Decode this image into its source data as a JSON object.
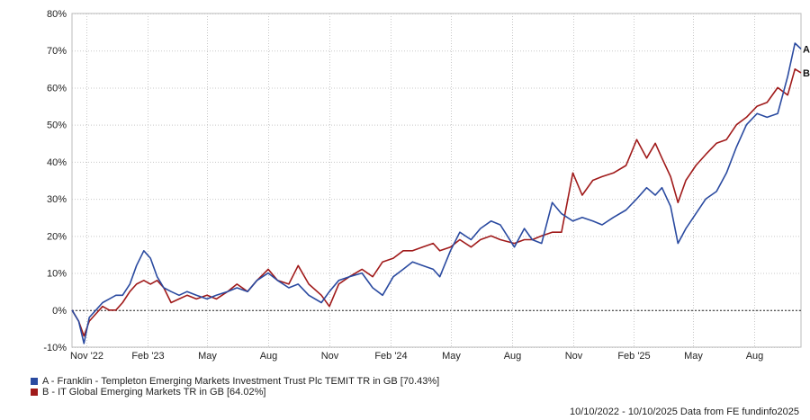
{
  "chart_data": {
    "type": "line",
    "title": "",
    "xlabel": "",
    "ylabel": "",
    "ylim": [
      -10,
      80
    ],
    "y_ticks": [
      "80%",
      "70%",
      "60%",
      "50%",
      "40%",
      "30%",
      "20%",
      "10%",
      "0%",
      "-10%"
    ],
    "y_tick_values": [
      80,
      70,
      60,
      50,
      40,
      30,
      20,
      10,
      0,
      -10
    ],
    "x_range": [
      "2022-10-10",
      "2025-10-10"
    ],
    "x_ticks": [
      {
        "label": "Nov '22",
        "date": "2022-11-01"
      },
      {
        "label": "Feb '23",
        "date": "2023-02-01"
      },
      {
        "label": "May",
        "date": "2023-05-01"
      },
      {
        "label": "Aug",
        "date": "2023-08-01"
      },
      {
        "label": "Nov",
        "date": "2023-11-01"
      },
      {
        "label": "Feb '24",
        "date": "2024-02-01"
      },
      {
        "label": "May",
        "date": "2024-05-01"
      },
      {
        "label": "Aug",
        "date": "2024-08-01"
      },
      {
        "label": "Nov",
        "date": "2024-11-01"
      },
      {
        "label": "Feb '25",
        "date": "2025-02-01"
      },
      {
        "label": "May",
        "date": "2025-05-01"
      },
      {
        "label": "Aug",
        "date": "2025-08-01"
      }
    ],
    "grid": true,
    "zero_line": true,
    "series": [
      {
        "name": "A - Franklin - Templeton Emerging Markets Investment Trust Plc TEMIT TR in GB [70.43%]",
        "end_label": "A",
        "color": "#2a4aa0",
        "points": [
          [
            "2022-10-10",
            0
          ],
          [
            "2022-10-20",
            -3
          ],
          [
            "2022-10-28",
            -9
          ],
          [
            "2022-11-05",
            -2
          ],
          [
            "2022-11-15",
            0
          ],
          [
            "2022-11-25",
            2
          ],
          [
            "2022-12-05",
            3
          ],
          [
            "2022-12-15",
            4
          ],
          [
            "2022-12-25",
            4
          ],
          [
            "2023-01-05",
            7
          ],
          [
            "2023-01-15",
            12
          ],
          [
            "2023-01-26",
            16
          ],
          [
            "2023-02-05",
            14
          ],
          [
            "2023-02-15",
            9
          ],
          [
            "2023-02-25",
            6
          ],
          [
            "2023-03-08",
            5
          ],
          [
            "2023-03-20",
            4
          ],
          [
            "2023-04-01",
            5
          ],
          [
            "2023-04-15",
            4
          ],
          [
            "2023-05-01",
            3
          ],
          [
            "2023-05-15",
            4
          ],
          [
            "2023-06-01",
            5
          ],
          [
            "2023-06-15",
            6
          ],
          [
            "2023-07-01",
            5
          ],
          [
            "2023-07-15",
            8
          ],
          [
            "2023-08-01",
            10
          ],
          [
            "2023-08-15",
            8
          ],
          [
            "2023-09-01",
            6
          ],
          [
            "2023-09-15",
            7
          ],
          [
            "2023-10-01",
            4
          ],
          [
            "2023-10-20",
            2
          ],
          [
            "2023-11-01",
            5
          ],
          [
            "2023-11-15",
            8
          ],
          [
            "2023-12-01",
            9
          ],
          [
            "2023-12-20",
            10
          ],
          [
            "2024-01-05",
            6
          ],
          [
            "2024-01-20",
            4
          ],
          [
            "2024-02-05",
            9
          ],
          [
            "2024-02-20",
            11
          ],
          [
            "2024-03-05",
            13
          ],
          [
            "2024-03-20",
            12
          ],
          [
            "2024-04-05",
            11
          ],
          [
            "2024-04-15",
            9
          ],
          [
            "2024-05-01",
            16
          ],
          [
            "2024-05-15",
            21
          ],
          [
            "2024-06-01",
            19
          ],
          [
            "2024-06-15",
            22
          ],
          [
            "2024-07-01",
            24
          ],
          [
            "2024-07-15",
            23
          ],
          [
            "2024-08-05",
            17
          ],
          [
            "2024-08-20",
            22
          ],
          [
            "2024-09-01",
            19
          ],
          [
            "2024-09-15",
            18
          ],
          [
            "2024-10-01",
            29
          ],
          [
            "2024-10-15",
            26
          ],
          [
            "2024-11-01",
            24
          ],
          [
            "2024-11-15",
            25
          ],
          [
            "2024-12-01",
            24
          ],
          [
            "2024-12-15",
            23
          ],
          [
            "2025-01-01",
            25
          ],
          [
            "2025-01-20",
            27
          ],
          [
            "2025-02-05",
            30
          ],
          [
            "2025-02-20",
            33
          ],
          [
            "2025-03-05",
            31
          ],
          [
            "2025-03-15",
            33
          ],
          [
            "2025-03-28",
            28
          ],
          [
            "2025-04-08",
            18
          ],
          [
            "2025-04-20",
            22
          ],
          [
            "2025-05-05",
            26
          ],
          [
            "2025-05-20",
            30
          ],
          [
            "2025-06-05",
            32
          ],
          [
            "2025-06-20",
            37
          ],
          [
            "2025-07-05",
            44
          ],
          [
            "2025-07-20",
            50
          ],
          [
            "2025-08-05",
            53
          ],
          [
            "2025-08-20",
            52
          ],
          [
            "2025-09-05",
            53
          ],
          [
            "2025-09-20",
            63
          ],
          [
            "2025-10-01",
            72
          ],
          [
            "2025-10-10",
            70.43
          ]
        ]
      },
      {
        "name": "B - IT Global Emerging Markets TR in GB [64.02%]",
        "end_label": "B",
        "color": "#a01a1a",
        "points": [
          [
            "2022-10-10",
            0
          ],
          [
            "2022-10-20",
            -3
          ],
          [
            "2022-10-28",
            -7
          ],
          [
            "2022-11-05",
            -3
          ],
          [
            "2022-11-15",
            -1
          ],
          [
            "2022-11-25",
            1
          ],
          [
            "2022-12-05",
            0
          ],
          [
            "2022-12-15",
            0
          ],
          [
            "2022-12-25",
            2
          ],
          [
            "2023-01-05",
            5
          ],
          [
            "2023-01-15",
            7
          ],
          [
            "2023-01-26",
            8
          ],
          [
            "2023-02-05",
            7
          ],
          [
            "2023-02-15",
            8
          ],
          [
            "2023-02-25",
            6
          ],
          [
            "2023-03-08",
            2
          ],
          [
            "2023-03-20",
            3
          ],
          [
            "2023-04-01",
            4
          ],
          [
            "2023-04-15",
            3
          ],
          [
            "2023-05-01",
            4
          ],
          [
            "2023-05-15",
            3
          ],
          [
            "2023-06-01",
            5
          ],
          [
            "2023-06-15",
            7
          ],
          [
            "2023-07-01",
            5
          ],
          [
            "2023-07-15",
            8
          ],
          [
            "2023-08-01",
            11
          ],
          [
            "2023-08-15",
            8
          ],
          [
            "2023-09-01",
            7
          ],
          [
            "2023-09-15",
            12
          ],
          [
            "2023-10-01",
            7
          ],
          [
            "2023-10-20",
            4
          ],
          [
            "2023-11-01",
            1
          ],
          [
            "2023-11-15",
            7
          ],
          [
            "2023-12-01",
            9
          ],
          [
            "2023-12-20",
            11
          ],
          [
            "2024-01-05",
            9
          ],
          [
            "2024-01-20",
            13
          ],
          [
            "2024-02-05",
            14
          ],
          [
            "2024-02-20",
            16
          ],
          [
            "2024-03-05",
            16
          ],
          [
            "2024-03-20",
            17
          ],
          [
            "2024-04-05",
            18
          ],
          [
            "2024-04-15",
            16
          ],
          [
            "2024-05-01",
            17
          ],
          [
            "2024-05-15",
            19
          ],
          [
            "2024-06-01",
            17
          ],
          [
            "2024-06-15",
            19
          ],
          [
            "2024-07-01",
            20
          ],
          [
            "2024-07-15",
            19
          ],
          [
            "2024-08-05",
            18
          ],
          [
            "2024-08-20",
            19
          ],
          [
            "2024-09-01",
            19
          ],
          [
            "2024-09-15",
            20
          ],
          [
            "2024-10-01",
            21
          ],
          [
            "2024-10-15",
            21
          ],
          [
            "2024-11-01",
            37
          ],
          [
            "2024-11-15",
            31
          ],
          [
            "2024-12-01",
            35
          ],
          [
            "2024-12-15",
            36
          ],
          [
            "2025-01-01",
            37
          ],
          [
            "2025-01-20",
            39
          ],
          [
            "2025-02-05",
            46
          ],
          [
            "2025-02-20",
            41
          ],
          [
            "2025-03-05",
            45
          ],
          [
            "2025-03-15",
            41
          ],
          [
            "2025-03-28",
            36
          ],
          [
            "2025-04-08",
            29
          ],
          [
            "2025-04-20",
            35
          ],
          [
            "2025-05-05",
            39
          ],
          [
            "2025-05-20",
            42
          ],
          [
            "2025-06-05",
            45
          ],
          [
            "2025-06-20",
            46
          ],
          [
            "2025-07-05",
            50
          ],
          [
            "2025-07-20",
            52
          ],
          [
            "2025-08-05",
            55
          ],
          [
            "2025-08-20",
            56
          ],
          [
            "2025-09-05",
            60
          ],
          [
            "2025-09-20",
            58
          ],
          [
            "2025-10-01",
            65
          ],
          [
            "2025-10-10",
            64.02
          ]
        ]
      }
    ]
  },
  "footer": {
    "text": "10/10/2022 - 10/10/2025 Data from FE fundinfo2025"
  }
}
